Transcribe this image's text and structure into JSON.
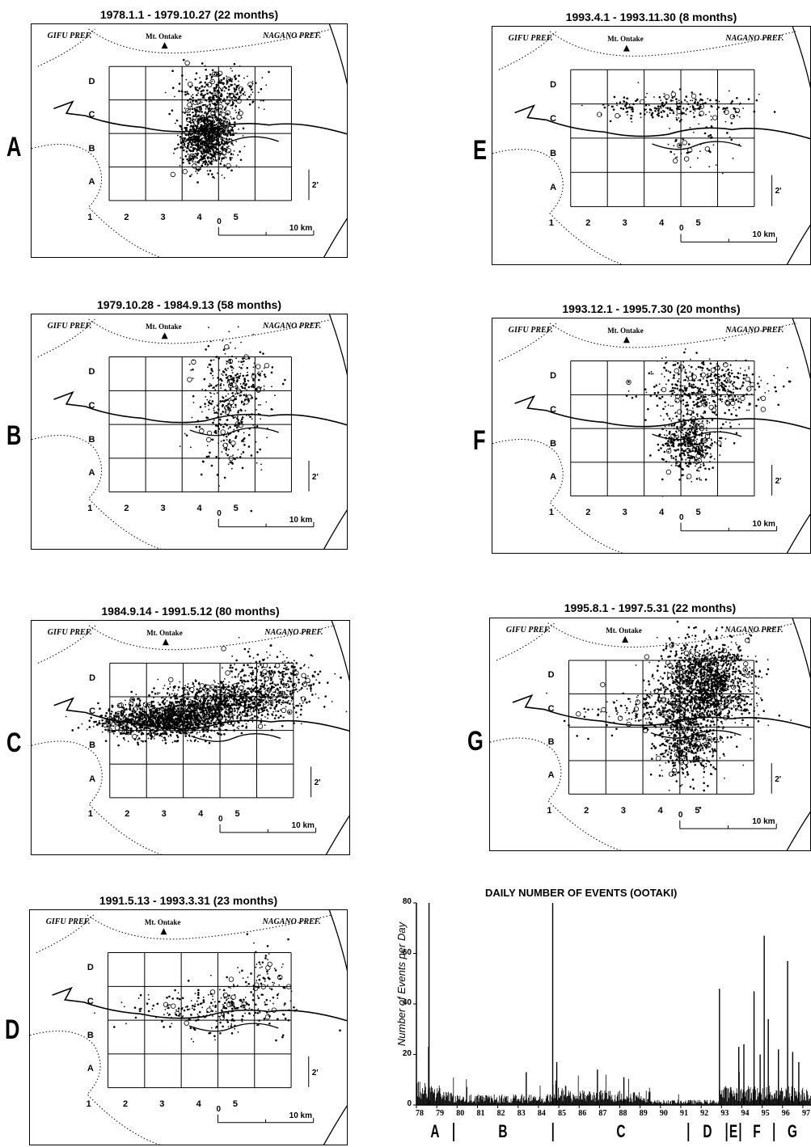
{
  "panels": [
    {
      "letter": "A",
      "title": "1978.1.1  -  1979.10.27  (22 months)",
      "density": 1300,
      "clusters": [
        [
          3.2,
          2.4,
          0.35,
          0.45,
          0.75
        ],
        [
          3.5,
          3.7,
          0.5,
          0.35,
          0.25
        ]
      ]
    },
    {
      "letter": "E",
      "title": "1993.4.1  -  1993.11.30  (8 months)",
      "density": 300,
      "clusters": [
        [
          3.2,
          3.4,
          1.0,
          0.2,
          0.8
        ],
        [
          3.9,
          2.3,
          0.5,
          0.4,
          0.2
        ]
      ]
    },
    {
      "letter": "B",
      "title": "1979.10.28  -  1984.9.13  (58 months)",
      "density": 450,
      "clusters": [
        [
          3.8,
          3.0,
          0.45,
          0.9,
          0.8
        ],
        [
          4.2,
          3.8,
          0.4,
          0.3,
          0.2
        ]
      ]
    },
    {
      "letter": "F",
      "title": "1993.12.1  -  1995.7.30  (20 months)",
      "density": 900,
      "clusters": [
        [
          3.7,
          2.1,
          0.35,
          0.45,
          0.5
        ],
        [
          4.2,
          3.7,
          0.8,
          0.45,
          0.5
        ]
      ]
    },
    {
      "letter": "C",
      "title": "1984.9.14  -  1991.5.12  (80 months)",
      "density": 2600,
      "clusters": [
        [
          2.0,
          2.8,
          0.8,
          0.25,
          0.5
        ],
        [
          3.5,
          3.3,
          0.9,
          0.3,
          0.35
        ],
        [
          4.8,
          3.9,
          0.7,
          0.4,
          0.15
        ]
      ]
    },
    {
      "letter": "G",
      "title": "1995.8.1  -  1997.5.31  (22 months)",
      "density": 2200,
      "clusters": [
        [
          4.2,
          3.9,
          0.6,
          0.6,
          0.6
        ],
        [
          3.7,
          2.0,
          0.4,
          0.5,
          0.25
        ],
        [
          3.3,
          3.0,
          1.1,
          0.3,
          0.15
        ]
      ]
    },
    {
      "letter": "D",
      "title": "1991.5.13  -  1993.3.31  (23 months)",
      "density": 350,
      "clusters": [
        [
          3.3,
          2.8,
          1.0,
          0.35,
          0.7
        ],
        [
          4.6,
          3.6,
          0.5,
          0.5,
          0.3
        ]
      ]
    }
  ],
  "map_labels": {
    "gifu": "GIFU PREF.",
    "nagano": "NAGANO PREF.",
    "ontake": "Mt. Ontake",
    "rows": [
      "D",
      "C",
      "B",
      "A"
    ],
    "cols": [
      "1",
      "2",
      "3",
      "4",
      "5"
    ],
    "scale_zero": "0",
    "scale_end": "10 km",
    "scale_minute": "2'"
  },
  "chart_data": {
    "type": "bar",
    "title": "DAILY NUMBER OF EVENTS (OOTAKI)",
    "ylabel": "Number of Events per Day",
    "ylim": [
      0,
      80
    ],
    "yticks": [
      "0",
      "20",
      "40",
      "60",
      "80"
    ],
    "xticks": [
      "78",
      "79",
      "80",
      "81",
      "82",
      "83",
      "84",
      "85",
      "86",
      "87",
      "88",
      "89",
      "90",
      "91",
      "92",
      "93",
      "94",
      "95",
      "96",
      "97"
    ],
    "xlim": [
      78,
      97.4
    ],
    "periods": [
      {
        "label": "A",
        "start": 78.0,
        "end": 79.83
      },
      {
        "label": "B",
        "start": 79.83,
        "end": 84.71
      },
      {
        "label": "C",
        "start": 84.71,
        "end": 91.37
      },
      {
        "label": "D",
        "start": 91.37,
        "end": 93.25
      },
      {
        "label": "E",
        "start": 93.25,
        "end": 93.92
      },
      {
        "label": "F",
        "start": 93.92,
        "end": 95.58
      },
      {
        "label": "G",
        "start": 95.58,
        "end": 97.42
      }
    ],
    "peaks": [
      {
        "x": 78.62,
        "y": 80
      },
      {
        "x": 78.6,
        "y": 23
      },
      {
        "x": 84.7,
        "y": 80
      },
      {
        "x": 84.9,
        "y": 17
      },
      {
        "x": 92.9,
        "y": 46
      },
      {
        "x": 93.85,
        "y": 23
      },
      {
        "x": 94.1,
        "y": 24
      },
      {
        "x": 94.6,
        "y": 45
      },
      {
        "x": 94.9,
        "y": 20
      },
      {
        "x": 95.1,
        "y": 67
      },
      {
        "x": 95.3,
        "y": 34
      },
      {
        "x": 95.8,
        "y": 22
      },
      {
        "x": 96.25,
        "y": 57
      },
      {
        "x": 96.5,
        "y": 21
      },
      {
        "x": 96.8,
        "y": 17
      },
      {
        "x": 83.4,
        "y": 13
      },
      {
        "x": 86.9,
        "y": 14
      },
      {
        "x": 88.2,
        "y": 11
      }
    ]
  }
}
